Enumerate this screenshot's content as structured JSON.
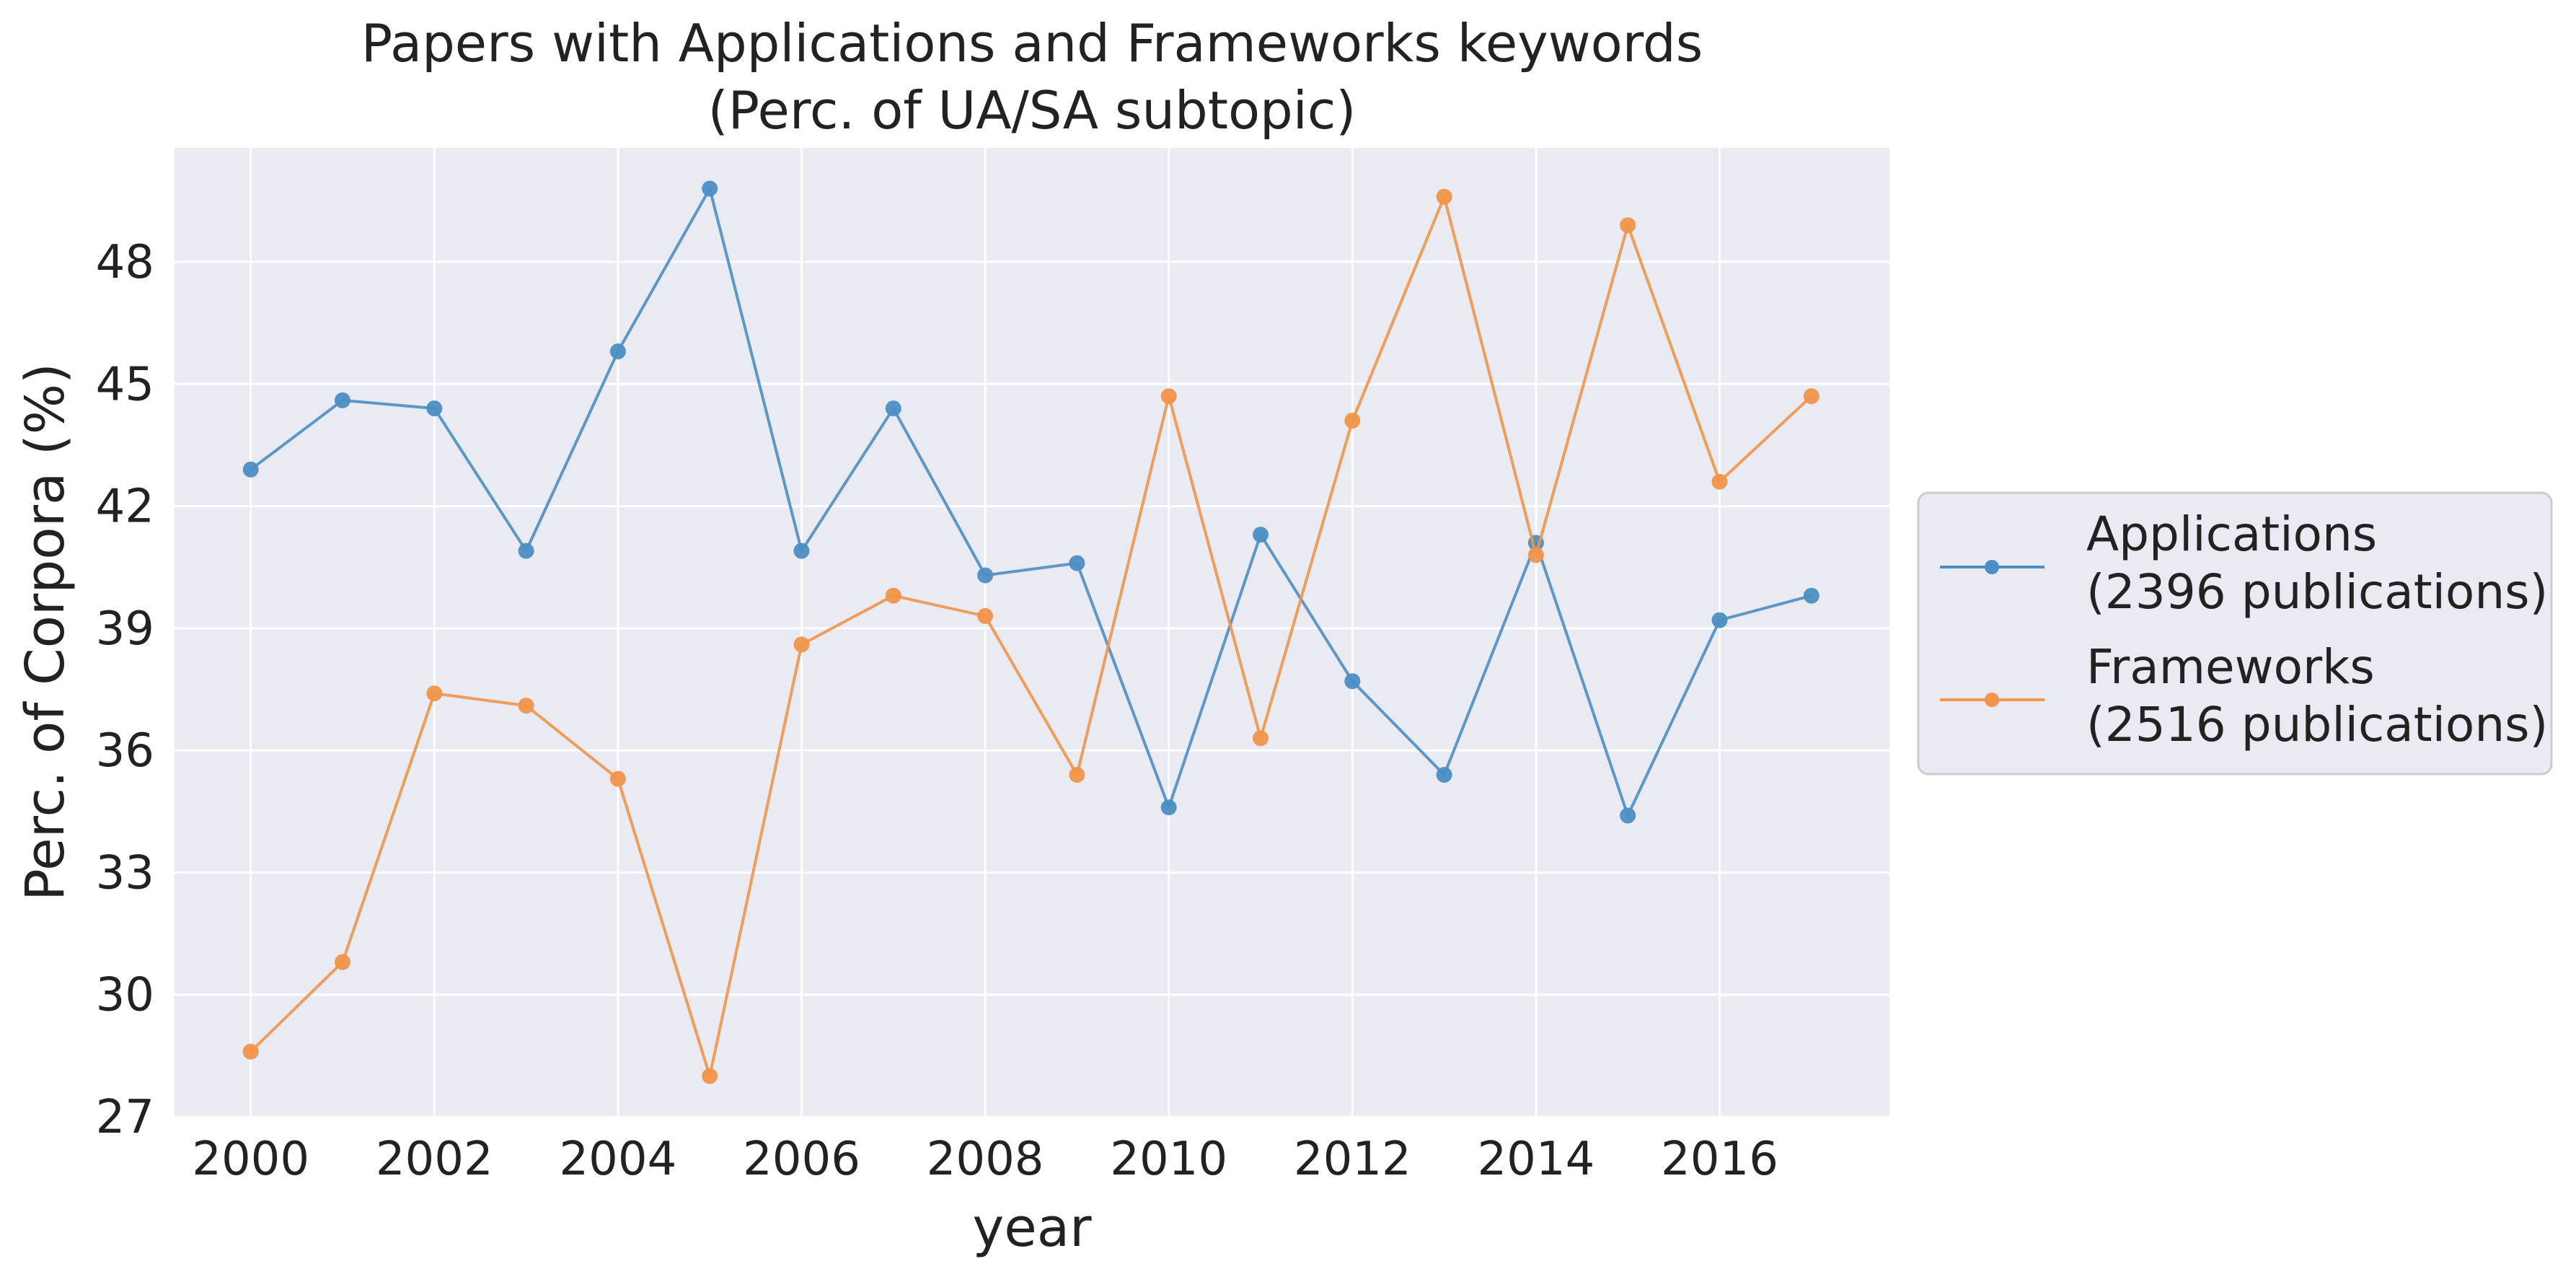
{
  "chart_data": {
    "type": "line",
    "title": [
      "Papers with Applications and Frameworks keywords",
      "(Perc. of UA/SA subtopic)"
    ],
    "xlabel": "year",
    "ylabel": "Perc. of Corpora (%)",
    "x": [
      2000,
      2001,
      2002,
      2003,
      2004,
      2005,
      2006,
      2007,
      2008,
      2009,
      2010,
      2011,
      2012,
      2013,
      2014,
      2015,
      2016,
      2017
    ],
    "xticks": [
      "2000",
      "2002",
      "2004",
      "2006",
      "2008",
      "2010",
      "2012",
      "2014",
      "2016"
    ],
    "yticks": [
      "27",
      "30",
      "33",
      "36",
      "39",
      "42",
      "45",
      "48"
    ],
    "xlim": [
      1999.17,
      2017.85
    ],
    "ylim": [
      27,
      50.8
    ],
    "grid": true,
    "legend_position": "right",
    "series": [
      {
        "name": "Applications",
        "legend_lines": [
          "Applications",
          "(2396 publications)"
        ],
        "color": "#4c8ec3",
        "values": [
          42.9,
          44.6,
          44.4,
          40.9,
          45.8,
          49.8,
          40.9,
          44.4,
          40.3,
          40.6,
          34.6,
          41.3,
          37.7,
          35.4,
          41.1,
          34.4,
          39.2,
          39.8
        ]
      },
      {
        "name": "Frameworks",
        "legend_lines": [
          "Frameworks",
          "(2516 publications)"
        ],
        "color": "#f0954a",
        "values": [
          28.6,
          30.8,
          37.4,
          37.1,
          35.3,
          28.0,
          38.6,
          39.8,
          39.3,
          35.4,
          44.7,
          36.3,
          44.1,
          49.6,
          40.8,
          48.9,
          42.6,
          44.7
        ]
      }
    ]
  }
}
